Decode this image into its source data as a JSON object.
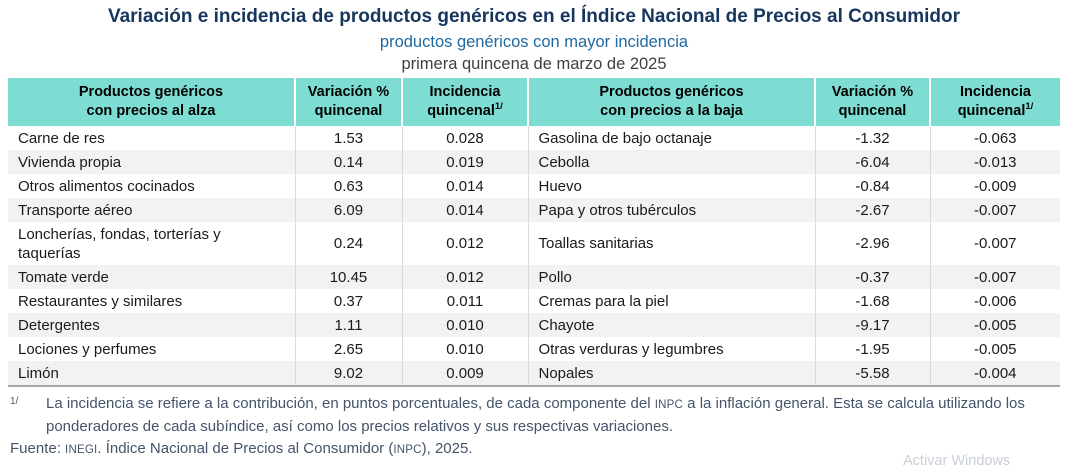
{
  "chart_data": {
    "type": "table",
    "title": "Variación e incidencia de productos genéricos en el Índice Nacional de Precios al Consumidor",
    "subtitle": "productos genéricos con mayor incidencia",
    "period": "primera quincena de marzo de 2025",
    "columns": [
      "Productos genéricos con precios al alza",
      "Variación % quincenal",
      "Incidencia quincenal 1/",
      "Productos genéricos con precios a la baja",
      "Variación % quincenal",
      "Incidencia quincenal 1/"
    ],
    "rows_alza": [
      {
        "product": "Carne de res",
        "variacion": "1.53",
        "incidencia": "0.028"
      },
      {
        "product": "Vivienda propia",
        "variacion": "0.14",
        "incidencia": "0.019"
      },
      {
        "product": "Otros alimentos cocinados",
        "variacion": "0.63",
        "incidencia": "0.014"
      },
      {
        "product": "Transporte aéreo",
        "variacion": "6.09",
        "incidencia": "0.014"
      },
      {
        "product": "Loncherías, fondas, torterías y taquerías",
        "variacion": "0.24",
        "incidencia": "0.012"
      },
      {
        "product": "Tomate verde",
        "variacion": "10.45",
        "incidencia": "0.012"
      },
      {
        "product": "Restaurantes y similares",
        "variacion": "0.37",
        "incidencia": "0.011"
      },
      {
        "product": "Detergentes",
        "variacion": "1.11",
        "incidencia": "0.010"
      },
      {
        "product": "Lociones y perfumes",
        "variacion": "2.65",
        "incidencia": "0.010"
      },
      {
        "product": "Limón",
        "variacion": "9.02",
        "incidencia": "0.009"
      }
    ],
    "rows_baja": [
      {
        "product": "Gasolina de bajo octanaje",
        "variacion": "-1.32",
        "incidencia": "-0.063"
      },
      {
        "product": "Cebolla",
        "variacion": "-6.04",
        "incidencia": "-0.013"
      },
      {
        "product": "Huevo",
        "variacion": "-0.84",
        "incidencia": "-0.009"
      },
      {
        "product": "Papa y otros tubérculos",
        "variacion": "-2.67",
        "incidencia": "-0.007"
      },
      {
        "product": "Toallas sanitarias",
        "variacion": "-2.96",
        "incidencia": "-0.007"
      },
      {
        "product": "Pollo",
        "variacion": "-0.37",
        "incidencia": "-0.007"
      },
      {
        "product": "Cremas para la piel",
        "variacion": "-1.68",
        "incidencia": "-0.006"
      },
      {
        "product": "Chayote",
        "variacion": "-9.17",
        "incidencia": "-0.005"
      },
      {
        "product": "Otras verduras y legumbres",
        "variacion": "-1.95",
        "incidencia": "-0.005"
      },
      {
        "product": "Nopales",
        "variacion": "-5.58",
        "incidencia": "-0.004"
      }
    ]
  },
  "table": {
    "headers": {
      "col1_line1": "Productos genéricos",
      "col1_line2": "con precios al alza",
      "col2_line1": "Variación %",
      "col2_line2": "quincenal",
      "col3_line1": "Incidencia",
      "col3_line2": "quincenal",
      "col3_sup": "1/",
      "col4_line1": "Productos genéricos",
      "col4_line2": "con precios a la baja",
      "col5_line1": "Variación %",
      "col5_line2": "quincenal",
      "col6_line1": "Incidencia",
      "col6_line2": "quincenal",
      "col6_sup": "1/"
    }
  },
  "footnote": {
    "marker": "1/",
    "seg1": "La incidencia se refiere a la contribución, en puntos porcentuales, de cada componente del ",
    "acronym_inpc": "INPC",
    "seg2": " a la inflación general. Esta se calcula utilizando los ponderadores de cada subíndice, así como los precios relativos y sus respectivas variaciones."
  },
  "source": {
    "label": "Fuente: ",
    "acronym_inegi": "INEGI",
    "seg1": ". Índice Nacional de Precios al Consumidor (",
    "acronym_inpc": "INPC",
    "seg2": "), 2025."
  },
  "watermark": "Activar Windows",
  "colors": {
    "header_fill": "#7DDDD2",
    "title_navy": "#17365D",
    "subtitle_blue": "#2069A0",
    "alt_row": "#F2F2F2"
  }
}
